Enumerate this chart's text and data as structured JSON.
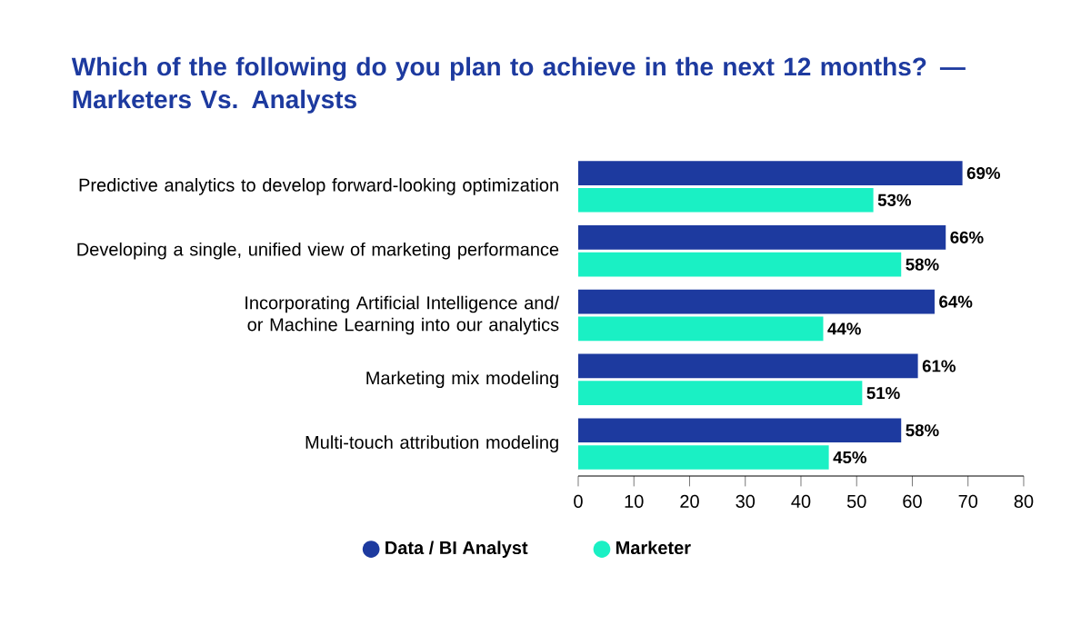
{
  "chart_data": {
    "type": "bar",
    "orientation": "horizontal",
    "title": "Which of the following do you plan to achieve in the next 12 months? — Marketers Vs. Analysts",
    "categories": [
      "Predictive analytics to develop forward-looking optimization",
      "Developing a single, unified view of marketing performance",
      "Incorporating Artificial Intelligence and/ or Machine Learning into our analytics",
      "Marketing mix modeling",
      "Multi-touch attribution modeling"
    ],
    "series": [
      {
        "name": "Data / BI Analyst",
        "color": "#1d3a9f",
        "values": [
          69,
          66,
          64,
          61,
          58
        ],
        "value_labels": [
          "69%",
          "66%",
          "64%",
          "61%",
          "58%"
        ]
      },
      {
        "name": "Marketer",
        "color": "#1af0c4",
        "values": [
          53,
          58,
          44,
          51,
          45
        ],
        "value_labels": [
          "53%",
          "58%",
          "44%",
          "51%",
          "45%"
        ]
      }
    ],
    "xlim": [
      0,
      80
    ],
    "xticks": [
      0,
      10,
      20,
      30,
      40,
      50,
      60,
      70,
      80
    ],
    "grid": false,
    "legend": "bottom"
  }
}
